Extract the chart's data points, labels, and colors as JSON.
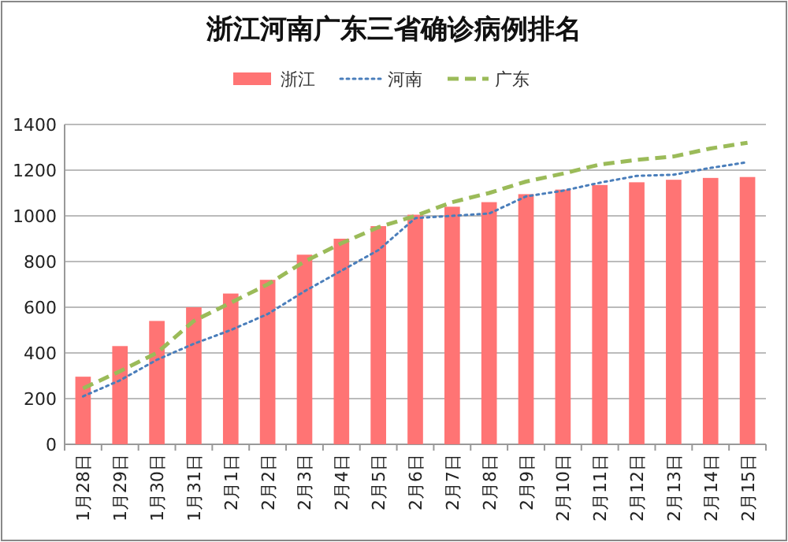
{
  "chart_data": {
    "type": "bar",
    "title": "浙江河南广东三省确诊病例排名",
    "categories": [
      "1月28日",
      "1月29日",
      "1月30日",
      "1月31日",
      "2月1日",
      "2月2日",
      "2月3日",
      "2月4日",
      "2月5日",
      "2月6日",
      "2月7日",
      "2月8日",
      "2月9日",
      "2月10日",
      "2月11日",
      "2月12日",
      "2月13日",
      "2月14日",
      "2月15日"
    ],
    "series": [
      {
        "name": "浙江",
        "color": "#ff7474",
        "values": [
          296,
          430,
          540,
          600,
          660,
          720,
          830,
          900,
          955,
          1005,
          1040,
          1060,
          1095,
          1115,
          1135,
          1147,
          1158,
          1166,
          1170
        ]
      },
      {
        "name": "河南",
        "type": "line",
        "line_style": "dotted",
        "color": "#4a7ebb",
        "values": [
          210,
          280,
          370,
          440,
          500,
          570,
          670,
          760,
          850,
          990,
          1000,
          1010,
          1085,
          1110,
          1145,
          1175,
          1180,
          1210,
          1235
        ]
      },
      {
        "name": "广东",
        "type": "line",
        "line_style": "dashed",
        "color": "#9bbb59",
        "values": [
          245,
          320,
          400,
          540,
          620,
          700,
          800,
          880,
          950,
          1000,
          1060,
          1100,
          1150,
          1185,
          1225,
          1245,
          1260,
          1295,
          1320
        ]
      }
    ],
    "ylim": [
      0,
      1400
    ],
    "yticks": [
      0,
      200,
      400,
      600,
      800,
      1000,
      1200,
      1400
    ],
    "grid": "y",
    "legend": "top",
    "marker": "none"
  }
}
